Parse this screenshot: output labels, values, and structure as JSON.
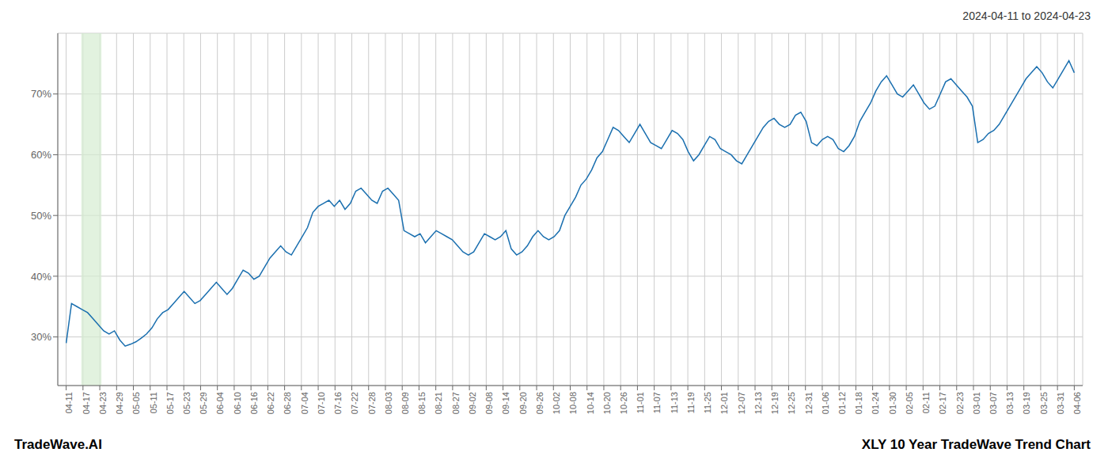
{
  "chart_data": {
    "type": "line",
    "title": "2024-04-11 to 2024-04-23",
    "annotations": [
      "TradeWave.AI",
      "XLY 10 Year TradeWave Trend Chart"
    ],
    "color": "#1a6faf",
    "grid": true,
    "highlight": {
      "x": [
        0.9,
        2.1
      ],
      "color": "#d6ecd2"
    },
    "xlim": [
      -0.5,
      60.5
    ],
    "xticks": [
      {
        "value": 0,
        "label": "04-11"
      },
      {
        "value": 1,
        "label": "04-17"
      },
      {
        "value": 2,
        "label": "04-23"
      },
      {
        "value": 3,
        "label": "04-29"
      },
      {
        "value": 4,
        "label": "05-05"
      },
      {
        "value": 5,
        "label": "05-11"
      },
      {
        "value": 6,
        "label": "05-17"
      },
      {
        "value": 7,
        "label": "05-23"
      },
      {
        "value": 8,
        "label": "05-29"
      },
      {
        "value": 9,
        "label": "06-04"
      },
      {
        "value": 10,
        "label": "06-10"
      },
      {
        "value": 11,
        "label": "06-16"
      },
      {
        "value": 12,
        "label": "06-22"
      },
      {
        "value": 13,
        "label": "06-28"
      },
      {
        "value": 14,
        "label": "07-04"
      },
      {
        "value": 15,
        "label": "07-10"
      },
      {
        "value": 16,
        "label": "07-16"
      },
      {
        "value": 17,
        "label": "07-22"
      },
      {
        "value": 18,
        "label": "07-28"
      },
      {
        "value": 19,
        "label": "08-03"
      },
      {
        "value": 20,
        "label": "08-09"
      },
      {
        "value": 21,
        "label": "08-15"
      },
      {
        "value": 22,
        "label": "08-21"
      },
      {
        "value": 23,
        "label": "08-27"
      },
      {
        "value": 24,
        "label": "09-02"
      },
      {
        "value": 25,
        "label": "09-08"
      },
      {
        "value": 26,
        "label": "09-14"
      },
      {
        "value": 27,
        "label": "09-20"
      },
      {
        "value": 28,
        "label": "09-26"
      },
      {
        "value": 29,
        "label": "10-02"
      },
      {
        "value": 30,
        "label": "10-08"
      },
      {
        "value": 31,
        "label": "10-14"
      },
      {
        "value": 32,
        "label": "10-20"
      },
      {
        "value": 33,
        "label": "10-26"
      },
      {
        "value": 34,
        "label": "11-01"
      },
      {
        "value": 35,
        "label": "11-07"
      },
      {
        "value": 36,
        "label": "11-13"
      },
      {
        "value": 37,
        "label": "11-19"
      },
      {
        "value": 38,
        "label": "11-25"
      },
      {
        "value": 39,
        "label": "12-01"
      },
      {
        "value": 40,
        "label": "12-07"
      },
      {
        "value": 41,
        "label": "12-13"
      },
      {
        "value": 42,
        "label": "12-19"
      },
      {
        "value": 43,
        "label": "12-25"
      },
      {
        "value": 44,
        "label": "12-31"
      },
      {
        "value": 45,
        "label": "01-06"
      },
      {
        "value": 46,
        "label": "01-12"
      },
      {
        "value": 47,
        "label": "01-18"
      },
      {
        "value": 48,
        "label": "01-24"
      },
      {
        "value": 49,
        "label": "01-30"
      },
      {
        "value": 50,
        "label": "02-05"
      },
      {
        "value": 51,
        "label": "02-11"
      },
      {
        "value": 52,
        "label": "02-17"
      },
      {
        "value": 53,
        "label": "02-23"
      },
      {
        "value": 54,
        "label": "03-01"
      },
      {
        "value": 55,
        "label": "03-07"
      },
      {
        "value": 56,
        "label": "03-13"
      },
      {
        "value": 57,
        "label": "03-19"
      },
      {
        "value": 58,
        "label": "03-25"
      },
      {
        "value": 59,
        "label": "03-31"
      },
      {
        "value": 60,
        "label": "04-06"
      }
    ],
    "ylim": [
      22,
      80
    ],
    "yticks": [
      {
        "value": 30,
        "label": "30%"
      },
      {
        "value": 40,
        "label": "40%"
      },
      {
        "value": 50,
        "label": "50%"
      },
      {
        "value": 60,
        "label": "60%"
      },
      {
        "value": 70,
        "label": "70%"
      }
    ],
    "x": [
      0,
      0.3191,
      0.6383,
      0.9574,
      1.2766,
      1.5957,
      1.9149,
      2.234,
      2.5532,
      2.8723,
      3.1915,
      3.5106,
      3.8298,
      4.1489,
      4.4681,
      4.7872,
      5.1064,
      5.4255,
      5.7447,
      6.0638,
      6.383,
      6.7021,
      7.0213,
      7.3404,
      7.6596,
      7.9787,
      8.2979,
      8.617,
      8.9362,
      9.2553,
      9.5745,
      9.8936,
      10.2128,
      10.5319,
      10.8511,
      11.1702,
      11.4894,
      11.8085,
      12.1277,
      12.4468,
      12.766,
      13.0851,
      13.4043,
      13.7234,
      14.0426,
      14.3617,
      14.6809,
      15,
      15.3191,
      15.6383,
      15.9574,
      16.2766,
      16.5957,
      16.9149,
      17.234,
      17.5532,
      17.8723,
      18.1915,
      18.5106,
      18.8298,
      19.1489,
      19.4681,
      19.7872,
      20.1064,
      20.4255,
      20.7447,
      21.0638,
      21.383,
      21.7021,
      22.0213,
      22.3404,
      22.6596,
      22.9787,
      23.2979,
      23.617,
      23.9362,
      24.2553,
      24.5745,
      24.8936,
      25.2128,
      25.5319,
      25.8511,
      26.1702,
      26.4894,
      26.8085,
      27.1277,
      27.4468,
      27.766,
      28.0851,
      28.4043,
      28.7234,
      29.0426,
      29.3617,
      29.6809,
      30,
      30.3191,
      30.6383,
      30.9574,
      31.2766,
      31.5957,
      31.9149,
      32.234,
      32.5532,
      32.8723,
      33.1915,
      33.5106,
      33.8298,
      34.1489,
      34.4681,
      34.7872,
      35.1064,
      35.4255,
      35.7447,
      36.0638,
      36.383,
      36.7021,
      37.0213,
      37.3404,
      37.6596,
      37.9787,
      38.2979,
      38.617,
      38.9362,
      39.2553,
      39.5745,
      39.8936,
      40.2128,
      40.5319,
      40.8511,
      41.1702,
      41.4894,
      41.8085,
      42.1277,
      42.4468,
      42.766,
      43.0851,
      43.4043,
      43.7234,
      44.0426,
      44.3617,
      44.6809,
      45,
      45.3191,
      45.6383,
      45.9574,
      46.2766,
      46.5957,
      46.9149,
      47.234,
      47.5532,
      47.8723,
      48.1915,
      48.5106,
      48.8298,
      49.1489,
      49.4681,
      49.7872,
      50.1064,
      50.4255,
      50.7447,
      51.0638,
      51.383,
      51.7021,
      52.0213,
      52.3404,
      52.6596,
      52.9787,
      53.2979,
      53.617,
      53.9362,
      54.2553,
      54.5745,
      54.8936,
      55.2128,
      55.5319,
      55.8511,
      56.1702,
      56.4894,
      56.8085,
      57.1277,
      57.4468,
      57.766,
      58.0851,
      58.4043,
      58.7234,
      59.0426,
      59.3617,
      59.6809,
      60
    ],
    "values": [
      29.0,
      35.5,
      35.0,
      34.5,
      34.0,
      33.0,
      32.0,
      31.0,
      30.5,
      31.0,
      29.5,
      28.5,
      28.8,
      29.2,
      29.8,
      30.5,
      31.5,
      33.0,
      34.0,
      34.5,
      35.5,
      36.5,
      37.5,
      36.5,
      35.5,
      36.0,
      37.0,
      38.0,
      39.0,
      38.0,
      37.0,
      38.0,
      39.5,
      41.0,
      40.5,
      39.5,
      40.0,
      41.5,
      43.0,
      44.0,
      45.0,
      44.0,
      43.5,
      45.0,
      46.5,
      48.0,
      50.5,
      51.5,
      52.0,
      52.5,
      51.5,
      52.5,
      51.0,
      52.0,
      54.0,
      54.5,
      53.5,
      52.5,
      52.0,
      54.0,
      54.5,
      53.5,
      52.5,
      47.5,
      47.0,
      46.5,
      47.0,
      45.5,
      46.5,
      47.5,
      47.0,
      46.5,
      46.0,
      45.0,
      44.0,
      43.5,
      44.0,
      45.5,
      47.0,
      46.5,
      46.0,
      46.5,
      47.5,
      44.5,
      43.5,
      44.0,
      45.0,
      46.5,
      47.5,
      46.5,
      46.0,
      46.5,
      47.5,
      50.0,
      51.5,
      53.0,
      55.0,
      56.0,
      57.5,
      59.5,
      60.5,
      62.5,
      64.5,
      64.0,
      63.0,
      62.0,
      63.5,
      65.0,
      63.5,
      62.0,
      61.5,
      61.0,
      62.5,
      64.0,
      63.5,
      62.5,
      60.5,
      59.0,
      60.0,
      61.5,
      63.0,
      62.5,
      61.0,
      60.5,
      60.0,
      59.0,
      58.5,
      60.0,
      61.5,
      63.0,
      64.5,
      65.5,
      66.0,
      65.0,
      64.5,
      65.0,
      66.5,
      67.0,
      65.5,
      62.0,
      61.5,
      62.5,
      63.0,
      62.5,
      61.0,
      60.5,
      61.5,
      63.0,
      65.5,
      67.0,
      68.5,
      70.5,
      72.0,
      73.0,
      71.5,
      70.0,
      69.5,
      70.5,
      71.5,
      70.0,
      68.5,
      67.5,
      68.0,
      70.0,
      72.0,
      72.5,
      71.5,
      70.5,
      69.5,
      68.0,
      62.0,
      62.5,
      63.5,
      64.0,
      65.0,
      66.5,
      68.0,
      69.5,
      71.0,
      72.5,
      73.5,
      74.5,
      73.5,
      72.0,
      71.0,
      72.5,
      74.0,
      75.5,
      73.5
    ]
  }
}
